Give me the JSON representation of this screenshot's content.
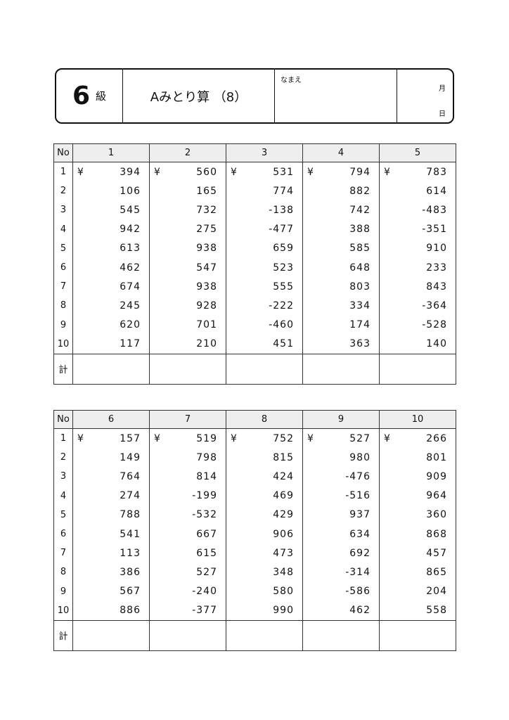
{
  "header": {
    "grade_number": "6",
    "grade_label": "級",
    "title": "Aみとり算 （8）",
    "name_label": "なまえ",
    "month_label": "月",
    "day_label": "日"
  },
  "currency_symbol": "¥",
  "no_label": "No",
  "total_label": "計",
  "row_numbers": [
    "1",
    "2",
    "3",
    "4",
    "5",
    "6",
    "7",
    "8",
    "9",
    "10"
  ],
  "tables": [
    {
      "columns": [
        "1",
        "2",
        "3",
        "4",
        "5"
      ],
      "values": [
        [
          "394",
          "106",
          "545",
          "942",
          "613",
          "462",
          "674",
          "245",
          "620",
          "117"
        ],
        [
          "560",
          "165",
          "732",
          "275",
          "938",
          "547",
          "938",
          "928",
          "701",
          "210"
        ],
        [
          "531",
          "774",
          "-138",
          "-477",
          "659",
          "523",
          "555",
          "-222",
          "-460",
          "451"
        ],
        [
          "794",
          "882",
          "742",
          "388",
          "585",
          "648",
          "803",
          "334",
          "174",
          "363"
        ],
        [
          "783",
          "614",
          "-483",
          "-351",
          "910",
          "233",
          "843",
          "-364",
          "-528",
          "140"
        ]
      ]
    },
    {
      "columns": [
        "6",
        "7",
        "8",
        "9",
        "10"
      ],
      "values": [
        [
          "157",
          "149",
          "764",
          "274",
          "788",
          "541",
          "113",
          "386",
          "567",
          "886"
        ],
        [
          "519",
          "798",
          "814",
          "-199",
          "-532",
          "667",
          "615",
          "527",
          "-240",
          "-377"
        ],
        [
          "752",
          "815",
          "424",
          "469",
          "429",
          "906",
          "473",
          "348",
          "580",
          "990"
        ],
        [
          "527",
          "980",
          "-476",
          "-516",
          "937",
          "634",
          "692",
          "-314",
          "-586",
          "462"
        ],
        [
          "266",
          "801",
          "909",
          "964",
          "360",
          "868",
          "457",
          "865",
          "204",
          "558"
        ]
      ]
    }
  ]
}
